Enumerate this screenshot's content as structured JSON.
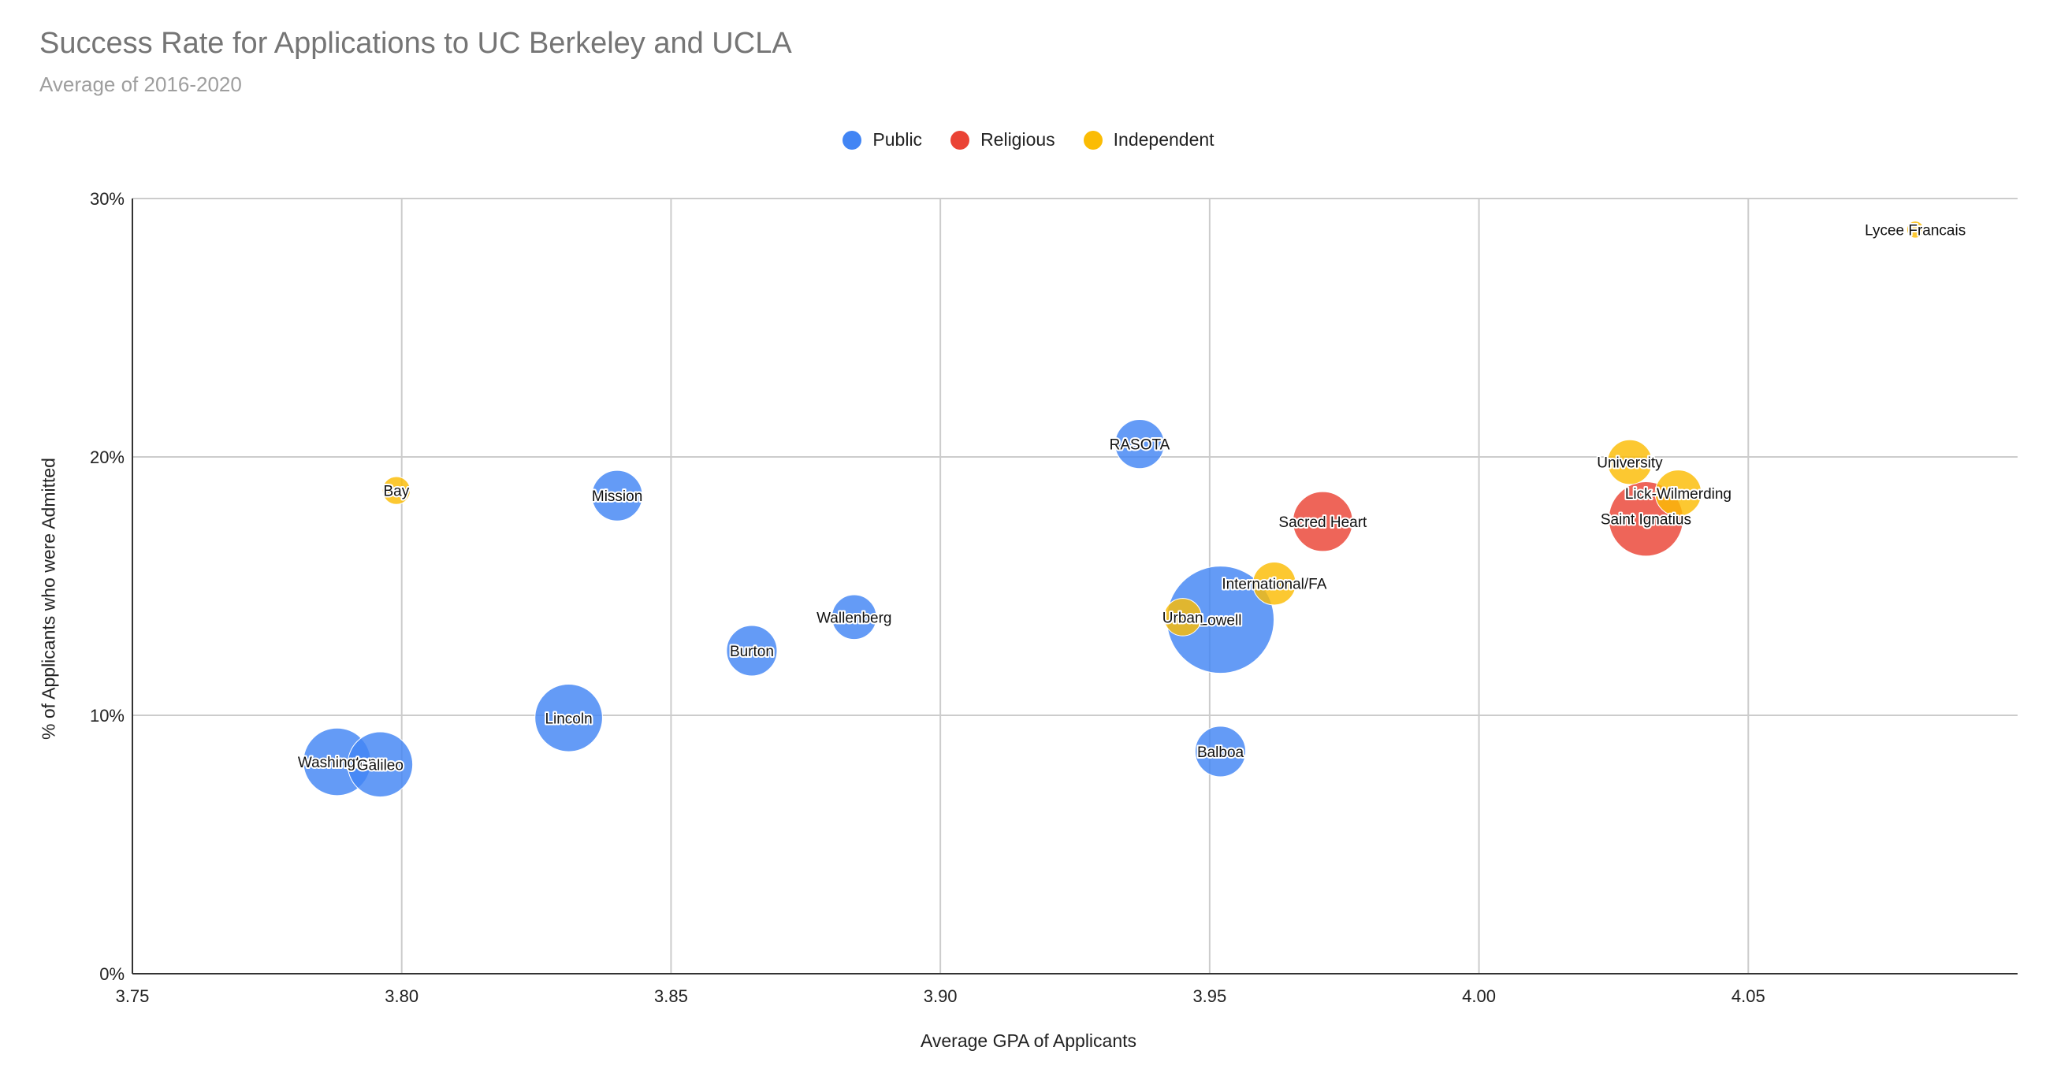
{
  "chart_data": {
    "type": "scatter",
    "title": "Success Rate for Applications to UC Berkeley and UCLA",
    "subtitle": "Average of 2016-2020",
    "xlabel": "Average GPA of Applicants",
    "ylabel": "% of Applicants who were Admitted",
    "xlim": [
      3.75,
      4.1
    ],
    "ylim": [
      0,
      30
    ],
    "x_ticks": [
      "3.75",
      "3.80",
      "3.85",
      "3.90",
      "3.95",
      "4.00",
      "4.05"
    ],
    "y_ticks": [
      "0%",
      "10%",
      "20%",
      "30%"
    ],
    "grid": true,
    "legend_position": "top",
    "bubble_size_note": "",
    "series": [
      {
        "name": "Public",
        "color": "#4285f4",
        "points": [
          {
            "label": "Washington",
            "x": 3.788,
            "y": 8.2,
            "size": 60
          },
          {
            "label": "Galileo",
            "x": 3.796,
            "y": 8.1,
            "size": 55
          },
          {
            "label": "Lincoln",
            "x": 3.831,
            "y": 9.9,
            "size": 60
          },
          {
            "label": "Mission",
            "x": 3.84,
            "y": 18.5,
            "size": 30
          },
          {
            "label": "Burton",
            "x": 3.865,
            "y": 12.5,
            "size": 30
          },
          {
            "label": "Wallenberg",
            "x": 3.884,
            "y": 13.8,
            "size": 22
          },
          {
            "label": "RASOTA",
            "x": 3.937,
            "y": 20.5,
            "size": 28
          },
          {
            "label": "Lowell",
            "x": 3.952,
            "y": 13.7,
            "size": 170
          },
          {
            "label": "Balboa",
            "x": 3.952,
            "y": 8.6,
            "size": 30
          }
        ]
      },
      {
        "name": "Religious",
        "color": "#ea4335",
        "points": [
          {
            "label": "Sacred Heart",
            "x": 3.971,
            "y": 17.5,
            "size": 45
          },
          {
            "label": "Saint Ignatius",
            "x": 4.031,
            "y": 17.6,
            "size": 75
          }
        ]
      },
      {
        "name": "Independent",
        "color": "#fbbc04",
        "points": [
          {
            "label": "Bay",
            "x": 3.799,
            "y": 18.7,
            "size": 6
          },
          {
            "label": "Urban",
            "x": 3.945,
            "y": 13.8,
            "size": 14
          },
          {
            "label": "International/FA",
            "x": 3.962,
            "y": 15.1,
            "size": 20
          },
          {
            "label": "University",
            "x": 4.028,
            "y": 19.8,
            "size": 22
          },
          {
            "label": "Lick-Wilmerding",
            "x": 4.037,
            "y": 18.6,
            "size": 24
          },
          {
            "label": "Lycee Francais",
            "x": 4.081,
            "y": 28.8,
            "size": 1
          }
        ]
      }
    ]
  }
}
